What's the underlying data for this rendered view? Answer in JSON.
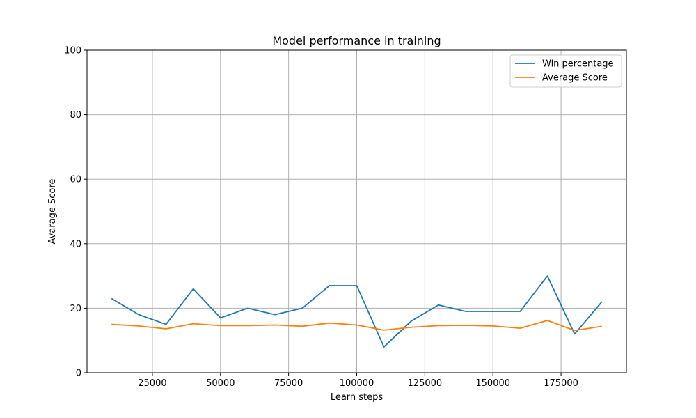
{
  "chart_data": {
    "type": "line",
    "title": "Model performance in training",
    "xlabel": "Learn steps",
    "ylabel": "Avarage Score",
    "xlim": [
      1000,
      199000
    ],
    "ylim": [
      0,
      100
    ],
    "x_ticks": [
      25000,
      50000,
      75000,
      100000,
      125000,
      150000,
      175000
    ],
    "y_ticks": [
      0,
      20,
      40,
      60,
      80,
      100
    ],
    "grid": true,
    "legend_position": "top-right",
    "x": [
      10000,
      20000,
      30000,
      40000,
      50000,
      60000,
      70000,
      80000,
      90000,
      100000,
      110000,
      120000,
      130000,
      140000,
      150000,
      160000,
      170000,
      180000,
      190000
    ],
    "series": [
      {
        "name": "Win percentage",
        "color": "#1f77b4",
        "values": [
          23,
          18,
          15,
          26,
          17,
          20,
          18,
          20,
          27,
          27,
          8,
          16,
          21,
          19,
          19,
          19,
          30,
          12,
          22
        ]
      },
      {
        "name": "Average Score",
        "color": "#ff7f0e",
        "values": [
          15.0,
          14.5,
          13.6,
          15.2,
          14.6,
          14.6,
          14.8,
          14.4,
          15.4,
          14.8,
          13.2,
          14.1,
          14.6,
          14.7,
          14.5,
          13.8,
          16.2,
          13.1,
          14.4
        ]
      }
    ]
  }
}
